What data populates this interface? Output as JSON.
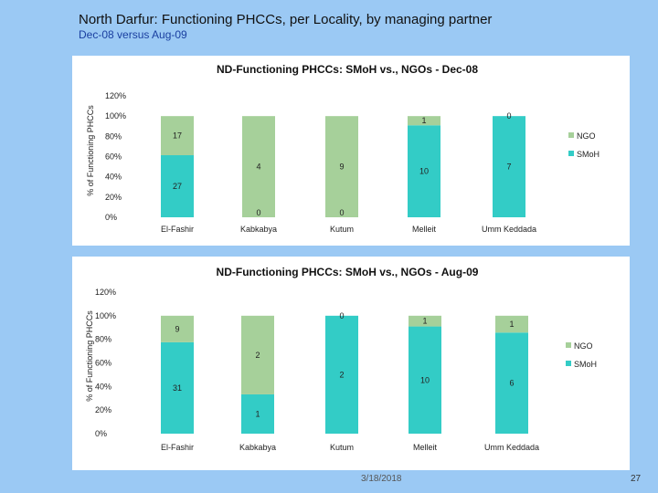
{
  "slide": {
    "title": "North Darfur: Functioning PHCCs, per Locality, by managing partner",
    "subtitle": "Dec-08 versus Aug-09",
    "footer_date": "3/18/2018",
    "page_number": "27"
  },
  "colors": {
    "smoh": "#33ccc6",
    "ngo": "#a6d09a",
    "background": "#9bc9f4",
    "panel": "#ffffff"
  },
  "chart_data": [
    {
      "type": "bar",
      "stacked": "percent",
      "title": "ND-Functioning PHCCs: SMoH vs., NGOs - Dec-08",
      "ylabel": "% of Functioning PHCCs",
      "xlabel": "",
      "categories": [
        "El-Fashir",
        "Kabkabya",
        "Kutum",
        "Melleit",
        "Umm Keddada"
      ],
      "series": [
        {
          "name": "SMoH",
          "values": [
            27,
            0,
            0,
            10,
            7
          ]
        },
        {
          "name": "NGO",
          "values": [
            17,
            4,
            9,
            1,
            0
          ]
        }
      ],
      "yticks": [
        "0%",
        "20%",
        "40%",
        "60%",
        "80%",
        "100%",
        "120%"
      ],
      "ylim": [
        0,
        120
      ],
      "legend": [
        "NGO",
        "SMoH"
      ],
      "legend_position": "right",
      "grid": false
    },
    {
      "type": "bar",
      "stacked": "percent",
      "title": "ND-Functioning PHCCs: SMoH vs., NGOs - Aug-09",
      "ylabel": "% of Functioning PHCCs",
      "xlabel": "",
      "categories": [
        "El-Fashir",
        "Kabkabya",
        "Kutum",
        "Melleit",
        "Umm Keddada"
      ],
      "series": [
        {
          "name": "SMoH",
          "values": [
            31,
            1,
            2,
            10,
            6
          ]
        },
        {
          "name": "NGO",
          "values": [
            9,
            2,
            0,
            1,
            1
          ]
        }
      ],
      "yticks": [
        "0%",
        "20%",
        "40%",
        "60%",
        "80%",
        "100%",
        "120%"
      ],
      "ylim": [
        0,
        120
      ],
      "legend": [
        "NGO",
        "SMoH"
      ],
      "legend_position": "right",
      "grid": false
    }
  ]
}
